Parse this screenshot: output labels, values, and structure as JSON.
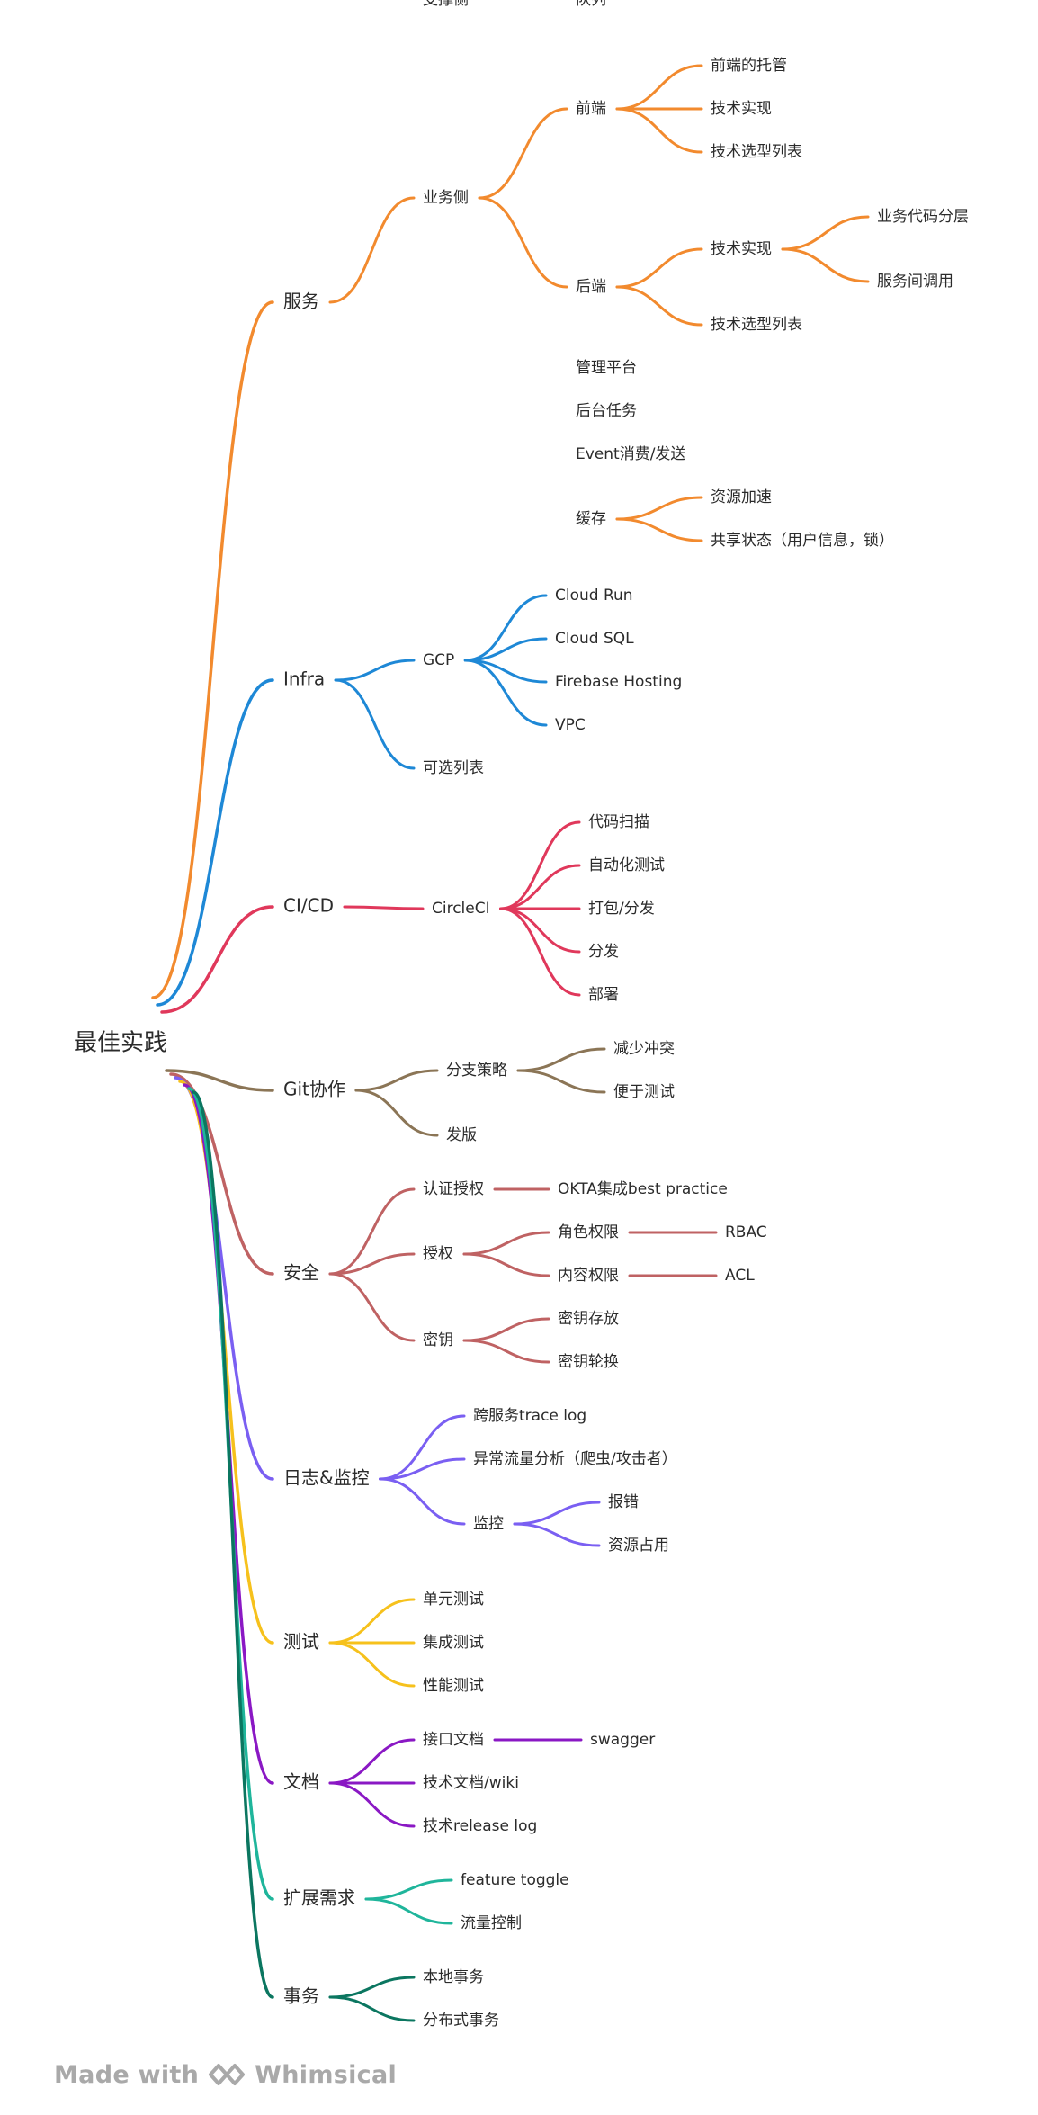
{
  "root": "最佳实践",
  "branches": [
    {
      "label": "服务",
      "color": "#f28a2e",
      "children": [
        {
          "label": "业务侧",
          "children": [
            {
              "label": "前端",
              "children": [
                {
                  "label": "前端的托管"
                },
                {
                  "label": "技术实现"
                },
                {
                  "label": "技术选型列表"
                }
              ]
            },
            {
              "label": "后端",
              "children": [
                {
                  "label": "技术实现",
                  "children": [
                    {
                      "label": "业务代码分层"
                    },
                    {
                      "label": "服务间调用"
                    }
                  ]
                },
                {
                  "label": "技术选型列表"
                }
              ]
            }
          ]
        },
        {
          "label": "支撑侧",
          "children": [
            {
              "label": "管理平台"
            },
            {
              "label": "后台任务"
            },
            {
              "label": "Event消费/发送"
            },
            {
              "label": "缓存",
              "children": [
                {
                  "label": "资源加速"
                },
                {
                  "label": "共享状态（用户信息，锁）"
                }
              ]
            },
            {
              "label": "队列"
            }
          ]
        }
      ]
    },
    {
      "label": "Infra",
      "color": "#1e88d6",
      "children": [
        {
          "label": "GCP",
          "children": [
            {
              "label": "Cloud Run"
            },
            {
              "label": "Cloud SQL"
            },
            {
              "label": "Firebase Hosting"
            },
            {
              "label": "VPC"
            }
          ]
        },
        {
          "label": "可选列表"
        }
      ]
    },
    {
      "label": "CI/CD",
      "color": "#e0385b",
      "children": [
        {
          "label": "CircleCI",
          "children": [
            {
              "label": "代码扫描"
            },
            {
              "label": "自动化测试"
            },
            {
              "label": "打包/分发"
            },
            {
              "label": "分发"
            },
            {
              "label": "部署"
            }
          ]
        }
      ]
    },
    {
      "label": "Git协作",
      "color": "#8b7556",
      "children": [
        {
          "label": "分支策略",
          "children": [
            {
              "label": "减少冲突"
            },
            {
              "label": "便于测试"
            }
          ]
        },
        {
          "label": "发版"
        }
      ]
    },
    {
      "label": "安全",
      "color": "#bf6263",
      "children": [
        {
          "label": "认证授权",
          "children": [
            {
              "label": "OKTA集成best practice"
            }
          ]
        },
        {
          "label": "授权",
          "children": [
            {
              "label": "角色权限",
              "children": [
                {
                  "label": "RBAC"
                }
              ]
            },
            {
              "label": "内容权限",
              "children": [
                {
                  "label": "ACL"
                }
              ]
            }
          ]
        },
        {
          "label": "密钥",
          "children": [
            {
              "label": "密钥存放"
            },
            {
              "label": "密钥轮换"
            }
          ]
        }
      ]
    },
    {
      "label": "日志&监控",
      "color": "#7a5ff2",
      "children": [
        {
          "label": "跨服务trace log"
        },
        {
          "label": "异常流量分析（爬虫/攻击者）"
        },
        {
          "label": "监控",
          "children": [
            {
              "label": "报错"
            },
            {
              "label": "资源占用"
            }
          ]
        }
      ]
    },
    {
      "label": "测试",
      "color": "#f6c11c",
      "children": [
        {
          "label": "单元测试"
        },
        {
          "label": "集成测试"
        },
        {
          "label": "性能测试"
        }
      ]
    },
    {
      "label": "文档",
      "color": "#8a18c4",
      "children": [
        {
          "label": "接口文档",
          "children": [
            {
              "label": "swagger"
            }
          ]
        },
        {
          "label": "技术文档/wiki"
        },
        {
          "label": "技术release log"
        }
      ]
    },
    {
      "label": "扩展需求",
      "color": "#1fb59b",
      "children": [
        {
          "label": "feature toggle"
        },
        {
          "label": "流量控制"
        }
      ]
    },
    {
      "label": "事务",
      "color": "#0b7660",
      "children": [
        {
          "label": "本地事务"
        },
        {
          "label": "分布式事务"
        }
      ]
    }
  ],
  "footer": {
    "made_with": "Made with",
    "brand": "Whimsical",
    "text_color": "#a9a9a9"
  }
}
